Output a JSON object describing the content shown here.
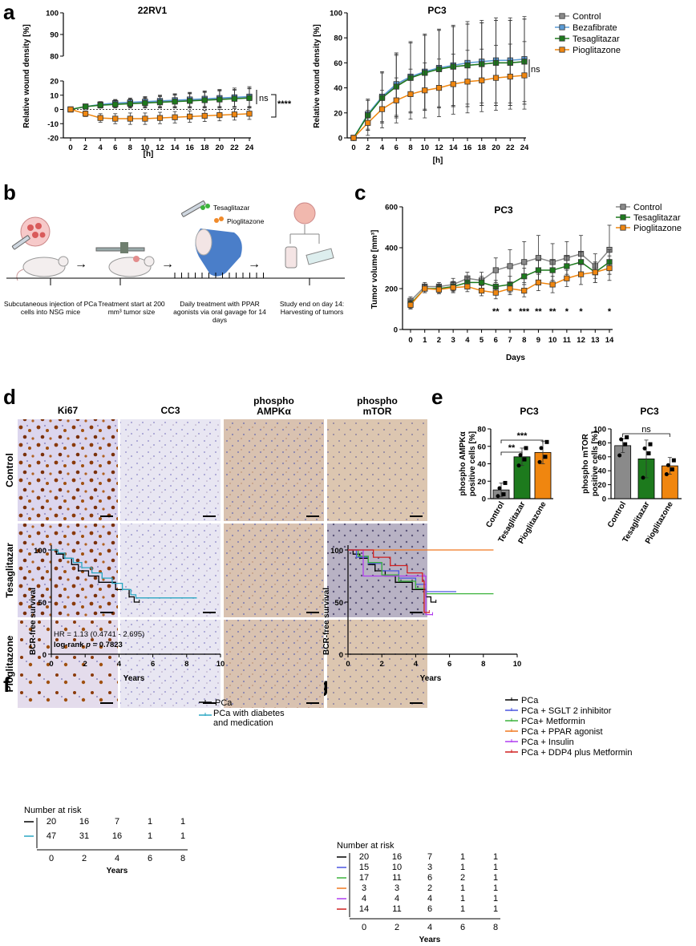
{
  "panel_labels": {
    "a": "a",
    "b": "b",
    "c": "c",
    "d": "d",
    "e": "e",
    "f": "f",
    "g": "g"
  },
  "colors": {
    "control": "#8a8a8a",
    "bezafibrate": "#5b9bd5",
    "tesaglitazar": "#1d7a1d",
    "pioglitazone": "#f0860f",
    "pca": "#000000",
    "pca_diabetes": "#2aa7c2",
    "sglt2": "#4a55e0",
    "metformin": "#3cb33c",
    "ppar": "#f07820",
    "insulin": "#b03cf0",
    "ddp4": "#d02020"
  },
  "chart_data": [
    {
      "id": "a-22rv1",
      "type": "line",
      "title": "22RV1",
      "xlabel": "[h]",
      "ylabel": "Relative wound density [%]",
      "x": [
        0,
        2,
        4,
        6,
        8,
        10,
        12,
        14,
        16,
        18,
        20,
        22,
        24
      ],
      "ylim": [
        -20,
        100
      ],
      "axis_break": [
        20,
        80
      ],
      "yticks_bottom": [
        -20,
        -10,
        0,
        10,
        20
      ],
      "yticks_top": [
        80,
        90,
        100
      ],
      "annotations": [
        "ns",
        "****"
      ],
      "series": [
        {
          "name": "Control",
          "values": [
            0,
            2,
            3,
            4,
            4.5,
            5,
            5.5,
            6,
            6.5,
            7,
            7.5,
            8,
            8.5
          ],
          "err": [
            1,
            1.5,
            2,
            2.5,
            3,
            3.5,
            4,
            4.5,
            5,
            5.5,
            6,
            6,
            6.5
          ]
        },
        {
          "name": "Bezafibrate",
          "values": [
            0,
            2,
            3.5,
            4.5,
            5,
            5.5,
            6,
            6.5,
            7,
            7.5,
            8,
            8.5,
            9
          ],
          "err": [
            1,
            1.5,
            2,
            2.5,
            3,
            3.5,
            4,
            4.5,
            5,
            5.5,
            6,
            6.5,
            7
          ]
        },
        {
          "name": "Tesaglitazar",
          "values": [
            0,
            2,
            3,
            3.5,
            4,
            4.5,
            5,
            5.5,
            6,
            6.5,
            7,
            7.5,
            8
          ],
          "err": [
            1,
            1.5,
            2,
            2.5,
            3,
            3.5,
            4,
            4.5,
            5,
            5.5,
            6,
            6,
            6.5
          ]
        },
        {
          "name": "Pioglitazone",
          "values": [
            0,
            -3,
            -6,
            -6.5,
            -6.5,
            -6.5,
            -6,
            -5.5,
            -5,
            -4.5,
            -4,
            -3.5,
            -3
          ],
          "err": [
            1,
            2,
            3,
            3.5,
            4,
            4,
            4,
            4,
            4,
            4,
            4,
            4,
            4
          ]
        }
      ]
    },
    {
      "id": "a-pc3",
      "type": "line",
      "title": "PC3",
      "xlabel": "[h]",
      "ylabel": "Relative wound density [%]",
      "x": [
        0,
        2,
        4,
        6,
        8,
        10,
        12,
        14,
        16,
        18,
        20,
        22,
        24
      ],
      "ylim": [
        0,
        100
      ],
      "yticks": [
        0,
        20,
        40,
        60,
        80,
        100
      ],
      "annotations": [
        "ns"
      ],
      "legend": [
        "Control",
        "Bezafibrate",
        "Tesaglitazar",
        "Pioglitazone"
      ],
      "series": [
        {
          "name": "Control",
          "values": [
            0,
            18,
            32,
            42,
            48,
            52,
            55,
            57,
            58,
            59,
            60,
            60,
            61
          ],
          "err": [
            2,
            12,
            20,
            25,
            28,
            30,
            31,
            32,
            33,
            33,
            34,
            34,
            34
          ]
        },
        {
          "name": "Bezafibrate",
          "values": [
            0,
            19,
            33,
            43,
            49,
            53,
            56,
            58,
            60,
            61,
            62,
            62,
            63
          ],
          "err": [
            2,
            12,
            20,
            25,
            28,
            30,
            31,
            32,
            33,
            33,
            34,
            34,
            34
          ]
        },
        {
          "name": "Tesaglitazar",
          "values": [
            0,
            18,
            32,
            41,
            48,
            52,
            55,
            57,
            58,
            59,
            60,
            60,
            61
          ],
          "err": [
            2,
            12,
            20,
            25,
            28,
            30,
            31,
            32,
            33,
            33,
            34,
            34,
            34
          ]
        },
        {
          "name": "Pioglitazone",
          "values": [
            0,
            12,
            23,
            30,
            35,
            38,
            40,
            43,
            45,
            46,
            48,
            49,
            50
          ],
          "err": [
            2,
            10,
            15,
            18,
            20,
            22,
            23,
            24,
            25,
            25,
            26,
            26,
            27
          ]
        }
      ]
    },
    {
      "id": "c-pc3",
      "type": "line",
      "title": "PC3",
      "xlabel": "Days",
      "ylabel": "Tumor volume [mm³]",
      "x": [
        0,
        1,
        2,
        3,
        4,
        5,
        6,
        7,
        8,
        9,
        10,
        11,
        12,
        13,
        14
      ],
      "ylim": [
        0,
        600
      ],
      "yticks": [
        0,
        200,
        400,
        600
      ],
      "legend": [
        "Control",
        "Tesaglitazar",
        "Pioglitazone"
      ],
      "significance": [
        {
          "x": 6,
          "label": "**"
        },
        {
          "x": 7,
          "label": "*"
        },
        {
          "x": 8,
          "label": "***"
        },
        {
          "x": 9,
          "label": "**"
        },
        {
          "x": 10,
          "label": "**"
        },
        {
          "x": 11,
          "label": "*"
        },
        {
          "x": 12,
          "label": "*"
        },
        {
          "x": 14,
          "label": "*"
        }
      ],
      "series": [
        {
          "name": "Control",
          "values": [
            140,
            210,
            210,
            220,
            250,
            240,
            290,
            310,
            330,
            350,
            330,
            350,
            370,
            310,
            390
          ],
          "err": [
            20,
            20,
            20,
            30,
            30,
            40,
            60,
            80,
            100,
            110,
            90,
            80,
            90,
            60,
            120
          ]
        },
        {
          "name": "Tesaglitazar",
          "values": [
            125,
            200,
            200,
            210,
            230,
            230,
            210,
            220,
            260,
            290,
            290,
            310,
            330,
            280,
            330
          ],
          "err": [
            20,
            20,
            20,
            25,
            25,
            30,
            30,
            40,
            40,
            50,
            50,
            50,
            50,
            50,
            60
          ]
        },
        {
          "name": "Pioglitazone",
          "values": [
            120,
            200,
            195,
            205,
            210,
            190,
            180,
            200,
            190,
            230,
            220,
            250,
            270,
            280,
            300
          ],
          "err": [
            20,
            20,
            20,
            25,
            25,
            25,
            30,
            30,
            30,
            40,
            40,
            40,
            50,
            50,
            60
          ]
        }
      ]
    },
    {
      "id": "e-ampk",
      "type": "bar",
      "title": "PC3",
      "ylabel": "phospho AMPKα positive cells [%]",
      "categories": [
        "Control",
        "Tesaglitazar",
        "Pioglitazone"
      ],
      "values": [
        10,
        48,
        53
      ],
      "err": [
        8,
        10,
        13
      ],
      "points": [
        [
          3,
          5,
          12,
          18
        ],
        [
          38,
          45,
          50,
          58
        ],
        [
          42,
          48,
          58,
          65
        ]
      ],
      "ylim": [
        0,
        80
      ],
      "yticks": [
        0,
        20,
        40,
        60,
        80
      ],
      "brackets": [
        {
          "from": 0,
          "to": 1,
          "label": "**"
        },
        {
          "from": 0,
          "to": 2,
          "label": "***"
        }
      ]
    },
    {
      "id": "e-mtor",
      "type": "bar",
      "title": "PC3",
      "ylabel": "phospho mTOR positive cells [%]",
      "categories": [
        "Control",
        "Tesaglitazar",
        "Pioglitazone"
      ],
      "values": [
        76,
        57,
        47
      ],
      "err": [
        10,
        27,
        12
      ],
      "points": [
        [
          62,
          78,
          85,
          88
        ],
        [
          30,
          65,
          72,
          78
        ],
        [
          35,
          42,
          48,
          55
        ]
      ],
      "ylim": [
        0,
        100
      ],
      "yticks": [
        0,
        20,
        40,
        60,
        80,
        100
      ],
      "brackets": [
        {
          "from": 0,
          "to": 2,
          "label": "ns"
        }
      ]
    },
    {
      "id": "f-km",
      "type": "line",
      "title": "",
      "xlabel": "Years",
      "ylabel": "BCR-free survival",
      "xlim": [
        0,
        10
      ],
      "xticks": [
        0,
        2,
        4,
        6,
        8,
        10
      ],
      "ylim": [
        0,
        100
      ],
      "yticks": [
        0,
        50,
        100
      ],
      "legend": [
        "PCa",
        "PCa with diabetes and medication"
      ],
      "stats": {
        "hr": "HR = 1.13 (0.4741 - 2.695)",
        "logrank_prefix": "log-rank ",
        "logrank_p": "p",
        "logrank_value": " = 0.7823"
      },
      "series": [
        {
          "name": "PCa",
          "steps": [
            [
              0,
              100
            ],
            [
              0.3,
              96
            ],
            [
              0.7,
              92
            ],
            [
              1.2,
              86
            ],
            [
              1.6,
              80
            ],
            [
              2.2,
              75
            ],
            [
              2.8,
              69
            ],
            [
              3.8,
              62
            ],
            [
              4.6,
              55
            ],
            [
              4.9,
              50
            ],
            [
              5.2,
              50
            ]
          ]
        },
        {
          "name": "PCa with diabetes and medication",
          "steps": [
            [
              0,
              100
            ],
            [
              0.4,
              97
            ],
            [
              0.8,
              92
            ],
            [
              1.3,
              88
            ],
            [
              1.8,
              83
            ],
            [
              2.4,
              78
            ],
            [
              3.0,
              73
            ],
            [
              3.6,
              68
            ],
            [
              4.2,
              62
            ],
            [
              4.7,
              57
            ],
            [
              5.0,
              54
            ],
            [
              8.6,
              54
            ]
          ]
        }
      ],
      "risk_title": "Number at risk",
      "risk_rows": [
        [
          "20",
          "16",
          "7",
          "1",
          "1"
        ],
        [
          "47",
          "31",
          "16",
          "1",
          "1"
        ]
      ],
      "risk_x": [
        "0",
        "2",
        "4",
        "6",
        "8"
      ],
      "risk_xlabel": "Years"
    },
    {
      "id": "g-km",
      "type": "line",
      "title": "",
      "xlabel": "Years",
      "ylabel": "BCR-free survival",
      "xlim": [
        0,
        10
      ],
      "xticks": [
        0,
        2,
        4,
        6,
        8,
        10
      ],
      "ylim": [
        0,
        100
      ],
      "yticks": [
        0,
        50,
        100
      ],
      "legend": [
        "PCa",
        "PCa + SGLT 2 inhibitor",
        "PCa+ Metformin",
        "PCa + PPAR agonist",
        "PCa + Insulin",
        "PCa + DDP4 plus Metformin"
      ],
      "series": [
        {
          "name": "PCa",
          "steps": [
            [
              0,
              100
            ],
            [
              0.3,
              96
            ],
            [
              0.7,
              92
            ],
            [
              1.2,
              86
            ],
            [
              1.6,
              80
            ],
            [
              2.2,
              75
            ],
            [
              2.8,
              69
            ],
            [
              3.8,
              62
            ],
            [
              4.6,
              55
            ],
            [
              4.9,
              50
            ],
            [
              5.2,
              50
            ]
          ]
        },
        {
          "name": "PCa + SGLT 2 inhibitor",
          "steps": [
            [
              0,
              100
            ],
            [
              0.5,
              93
            ],
            [
              1.2,
              87
            ],
            [
              2.0,
              80
            ],
            [
              3.0,
              73
            ],
            [
              4.0,
              67
            ],
            [
              4.6,
              60
            ],
            [
              6.4,
              60
            ]
          ]
        },
        {
          "name": "PCa+ Metformin",
          "steps": [
            [
              0,
              100
            ],
            [
              0.6,
              94
            ],
            [
              1.2,
              88
            ],
            [
              2.0,
              76
            ],
            [
              3.0,
              70
            ],
            [
              4.0,
              63
            ],
            [
              4.6,
              58
            ],
            [
              8.6,
              58
            ]
          ]
        },
        {
          "name": "PCa + PPAR agonist",
          "steps": [
            [
              0,
              100
            ],
            [
              8.6,
              100
            ]
          ]
        },
        {
          "name": "PCa + Insulin",
          "steps": [
            [
              0,
              100
            ],
            [
              0.9,
              75
            ],
            [
              4.5,
              75
            ],
            [
              4.6,
              38
            ],
            [
              5.0,
              38
            ]
          ]
        },
        {
          "name": "PCa + DDP4 plus Metformin",
          "steps": [
            [
              0,
              100
            ],
            [
              1.5,
              93
            ],
            [
              2.5,
              85
            ],
            [
              3.5,
              78
            ],
            [
              4.4,
              70
            ],
            [
              4.5,
              40
            ],
            [
              4.8,
              40
            ]
          ]
        }
      ],
      "risk_title": "Number at risk",
      "risk_rows": [
        [
          "20",
          "16",
          "7",
          "1",
          "1"
        ],
        [
          "15",
          "10",
          "3",
          "1",
          "1"
        ],
        [
          "17",
          "11",
          "6",
          "2",
          "1"
        ],
        [
          "3",
          "3",
          "2",
          "1",
          "1"
        ],
        [
          "4",
          "4",
          "4",
          "1",
          "1"
        ],
        [
          "14",
          "11",
          "6",
          "1",
          "1"
        ]
      ],
      "risk_x": [
        "0",
        "2",
        "4",
        "6",
        "8"
      ],
      "risk_xlabel": "Years"
    }
  ],
  "schematic": {
    "drug_labels": [
      "Tesaglitazar",
      "Pioglitazone"
    ],
    "steps": [
      "Subcutaneous injection of PCa cells into NSG mice",
      "Treatment start at 200 mm³ tumor size",
      "Daily treatment with PPAR agonists via oral gavage for 14 days",
      "Study end on day 14: Harvesting of tumors"
    ]
  },
  "histology": {
    "columns": [
      "Ki67",
      "CC3",
      "phospho AMPKα",
      "phospho mTOR"
    ],
    "column_lines": [
      [
        "Ki67"
      ],
      [
        "CC3"
      ],
      [
        "phospho",
        "AMPKα"
      ],
      [
        "phospho",
        "mTOR"
      ]
    ],
    "rows": [
      "Control",
      "Tesaglitazar",
      "Pioglitazone"
    ]
  }
}
